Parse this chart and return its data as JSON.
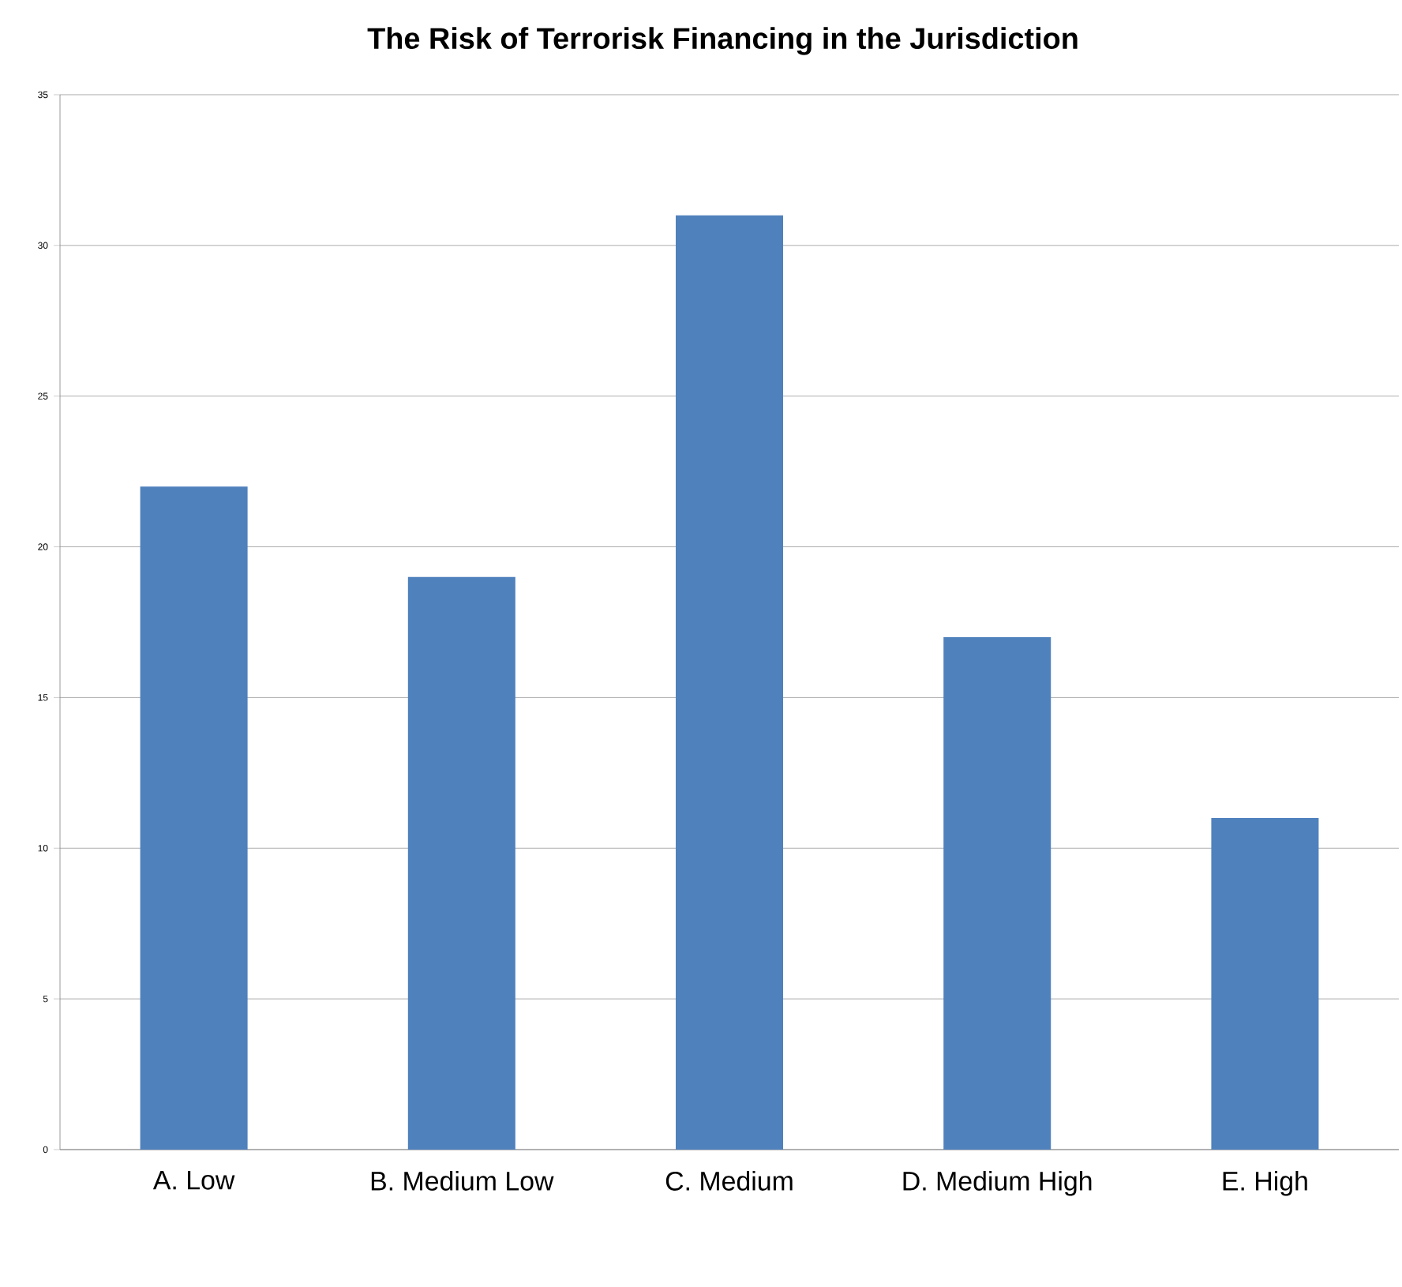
{
  "chart_data": {
    "type": "bar",
    "title": "The Risk of Terrorisk Financing in the Jurisdiction",
    "categories": [
      "A. Low",
      "B. Medium Low",
      "C. Medium",
      "D. Medium High",
      "E. High"
    ],
    "values": [
      22,
      19,
      31,
      17,
      11
    ],
    "color": "#4f81bd",
    "ylim": [
      0,
      35
    ],
    "yticks": [
      0,
      5,
      10,
      15,
      20,
      25,
      30,
      35
    ],
    "grid": "y"
  }
}
